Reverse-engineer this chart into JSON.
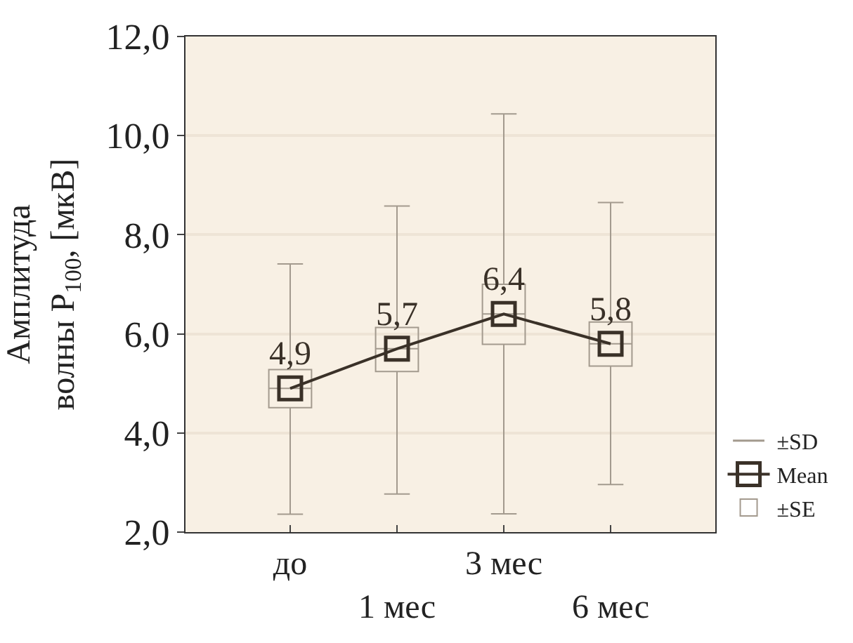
{
  "chart_data": {
    "type": "box",
    "ylabel": "Амплитуда\nволны P$_{100}$, [мкВ]",
    "categories": [
      "до",
      "1 мес",
      "3 мес",
      "6 мес"
    ],
    "ylim": [
      2.0,
      12.0
    ],
    "yticks": [
      {
        "value": 2,
        "label": "2,0"
      },
      {
        "value": 4,
        "label": "4,0"
      },
      {
        "value": 6,
        "label": "6,0"
      },
      {
        "value": 8,
        "label": "8,0"
      },
      {
        "value": 10,
        "label": "10,0"
      },
      {
        "value": 12,
        "label": "12,0"
      }
    ],
    "grid": "y",
    "legend": "right",
    "annotations": [
      "±SD"
    ],
    "series": [
      {
        "name": "±SE",
        "color": "#a39a8e",
        "boxes": [
          {
            "low": 2.36,
            "q1": 4.51,
            "median": 4.9,
            "q3": 5.28,
            "high": 7.41
          },
          {
            "low": 2.77,
            "q1": 5.24,
            "median": 5.7,
            "q3": 6.13,
            "high": 8.58
          },
          {
            "low": 2.37,
            "q1": 5.79,
            "median": 6.4,
            "q3": 7.0,
            "high": 10.44
          },
          {
            "low": 2.96,
            "q1": 5.35,
            "median": 5.8,
            "q3": 6.24,
            "high": 8.65
          }
        ]
      },
      {
        "type": "line",
        "name": "Mean",
        "color": "#3a3128",
        "marker": "square",
        "values": [
          4.9,
          5.7,
          6.4,
          5.8
        ],
        "value_labels": [
          "4,9",
          "5,7",
          "6,4",
          "5,8"
        ]
      }
    ]
  }
}
